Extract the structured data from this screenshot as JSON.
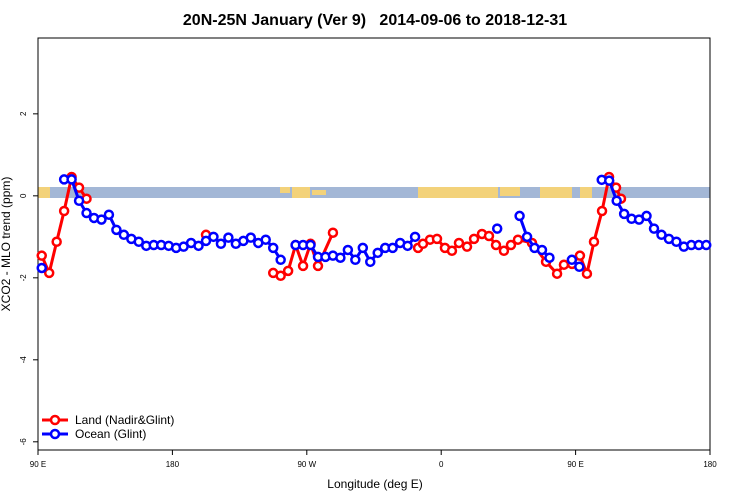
{
  "chart_data": {
    "type": "line",
    "title": "20N-25N January (Ver 9)   2014-09-06 to 2018-12-31",
    "xlabel": "Longitude (deg E)",
    "ylabel": "XCO2 - MLO trend (ppm)",
    "xlim": [
      90,
      540
    ],
    "xticks": [
      {
        "value": 90,
        "label": "90 E"
      },
      180,
      {
        "value": 270,
        "label": "90 W"
      },
      {
        "value": 360,
        "label": "0"
      },
      {
        "value": 450,
        "label": "90 E"
      },
      {
        "value": 540,
        "label": "180"
      }
    ],
    "ylim": [
      -6.2,
      3.85
    ],
    "yticks": [
      -6,
      -4,
      -2,
      0,
      2
    ],
    "legend": "bottom-left",
    "series": [
      {
        "name": "Land (Nadir&Glint)",
        "color": "#ff0000",
        "x": [
          92.5,
          97.5,
          102.5,
          107.5,
          112.5,
          117.5,
          122.5,
          160,
          202.5,
          230,
          247.5,
          252.5,
          257.5,
          262.5,
          267.5,
          272.5,
          277.5,
          287.5,
          320,
          344.5,
          347.8,
          352.5,
          357.2,
          362.5,
          367.2,
          371.9,
          377.3,
          382,
          387.3,
          392,
          396.7,
          402,
          406.7,
          411.4,
          420.8,
          430.2,
          437.6,
          442.2,
          447.6,
          452.9,
          457.6,
          462.3,
          467.7,
          472.4,
          477.1,
          480.4
        ],
        "values": [
          -1.46,
          -1.88,
          -1.12,
          -0.37,
          0.46,
          0.2,
          -0.07,
          null,
          -0.95,
          null,
          -1.88,
          -1.95,
          -1.83,
          -1.2,
          -1.71,
          -1.17,
          -1.71,
          -0.9,
          null,
          -1.27,
          -1.17,
          -1.07,
          -1.05,
          -1.27,
          -1.34,
          -1.15,
          -1.24,
          -1.05,
          -0.93,
          -0.98,
          -1.2,
          -1.34,
          -1.2,
          -1.07,
          -1.15,
          -1.61,
          -1.9,
          -1.68,
          -1.66,
          -1.46,
          -1.9,
          -1.12,
          -0.37,
          0.46,
          0.2,
          -0.07
        ]
      },
      {
        "name": "Ocean (Glint)",
        "color": "#0000ff",
        "x": [
          92.5,
          100,
          107.5,
          112.5,
          117.5,
          122.5,
          127.5,
          132.5,
          137.5,
          142.5,
          147.5,
          152.5,
          157.5,
          162.5,
          167.5,
          172.5,
          177.5,
          182.5,
          187.5,
          192.5,
          197.5,
          202.5,
          207.5,
          212.5,
          217.5,
          222.5,
          227.5,
          232.5,
          237.5,
          242.5,
          247.5,
          252.5,
          257.5,
          262.5,
          267.5,
          272.5,
          277.5,
          282.5,
          287.5,
          292.5,
          297.5,
          302.5,
          307.5,
          312.5,
          317.5,
          322.5,
          327.5,
          332.5,
          337.5,
          342.5,
          370,
          397.5,
          405,
          412.5,
          417.5,
          422.5,
          427.5,
          432.5,
          440,
          447.5,
          452.5,
          460,
          467.5,
          472.5,
          477.5,
          482.5,
          487.5,
          492.5,
          497.5,
          502.5,
          507.5,
          512.5,
          517.5,
          522.5,
          527.5,
          532.5,
          537.5
        ],
        "values": [
          -1.76,
          null,
          0.4,
          0.4,
          -0.12,
          -0.42,
          -0.54,
          -0.58,
          -0.46,
          -0.83,
          -0.95,
          -1.05,
          -1.12,
          -1.22,
          -1.2,
          -1.2,
          -1.22,
          -1.27,
          -1.24,
          -1.15,
          -1.22,
          -1.1,
          -1.0,
          -1.17,
          -1.02,
          -1.17,
          -1.1,
          -1.02,
          -1.15,
          -1.07,
          -1.27,
          -1.56,
          null,
          -1.2,
          -1.2,
          -1.2,
          -1.49,
          -1.49,
          -1.46,
          -1.51,
          -1.32,
          -1.56,
          -1.27,
          -1.61,
          -1.39,
          -1.27,
          -1.27,
          -1.15,
          -1.22,
          -1.0,
          null,
          -0.8,
          null,
          -0.49,
          -1.0,
          -1.27,
          -1.32,
          -1.51,
          null,
          -1.56,
          -1.73,
          null,
          0.39,
          0.37,
          -0.12,
          -0.44,
          -0.56,
          -0.58,
          -0.49,
          -0.8,
          -0.95,
          -1.05,
          -1.12,
          -1.24,
          -1.2,
          -1.2,
          -1.2
        ]
      }
    ]
  }
}
